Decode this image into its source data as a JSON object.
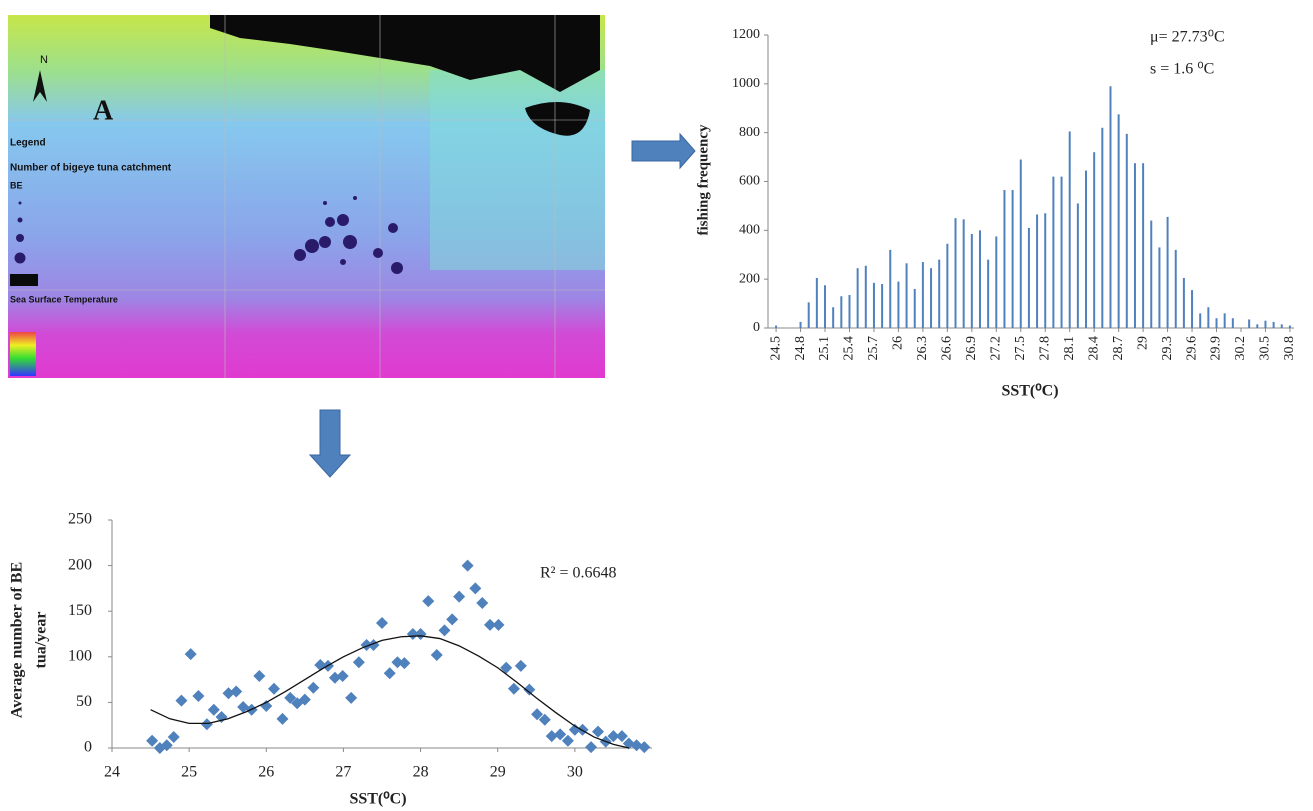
{
  "map": {
    "panel_label": "A",
    "north": "N",
    "legend_title": "Legend",
    "legend_subtitle": "Number of bigeye tuna catchment",
    "legend_layer": "BE",
    "sst_title": "Sea Surface Temperature"
  },
  "chart_data": [
    {
      "type": "bar",
      "xlabel": "SST(⁰C)",
      "ylabel": "fishing frequency",
      "annotations": [
        "μ= 27.73⁰C",
        "s = 1.6 ⁰C"
      ],
      "categories": [
        "24.5",
        null,
        null,
        "24.8",
        null,
        null,
        "25.1",
        null,
        null,
        "25.4",
        null,
        null,
        "25.7",
        null,
        null,
        "26",
        null,
        null,
        "26.3",
        null,
        null,
        "26.6",
        null,
        null,
        "26.9",
        null,
        null,
        "27.2",
        null,
        null,
        "27.5",
        null,
        null,
        "27.8",
        null,
        null,
        "28.1",
        null,
        null,
        "28.4",
        null,
        null,
        "28.7",
        null,
        null,
        "29",
        null,
        null,
        "29.3",
        null,
        null,
        "29.6",
        null,
        null,
        "29.9",
        null,
        null,
        "30.2",
        null,
        null,
        "30.5",
        null,
        null,
        "30.8"
      ],
      "values": [
        10,
        0,
        0,
        25,
        105,
        205,
        175,
        85,
        130,
        135,
        245,
        255,
        185,
        180,
        320,
        190,
        265,
        160,
        270,
        245,
        280,
        345,
        450,
        445,
        385,
        400,
        280,
        375,
        565,
        565,
        690,
        410,
        465,
        470,
        620,
        620,
        805,
        510,
        645,
        720,
        820,
        990,
        875,
        795,
        675,
        675,
        440,
        330,
        455,
        320,
        205,
        155,
        60,
        85,
        40,
        60,
        40,
        0,
        35,
        15,
        30,
        25,
        15,
        10
      ],
      "color": "#4f81bd",
      "ylim": [
        0,
        1200
      ],
      "yticks": [
        0,
        200,
        400,
        600,
        800,
        1000,
        1200
      ]
    },
    {
      "type": "scatter",
      "xlabel": "SST(⁰C)",
      "ylabel": [
        "Average  number of BE",
        "tua/year"
      ],
      "annotations": [
        "R² = 0.6648"
      ],
      "x": [
        24.52,
        24.62,
        24.71,
        24.8,
        24.9,
        25.02,
        25.12,
        25.23,
        25.32,
        25.42,
        25.51,
        25.61,
        25.7,
        25.81,
        25.91,
        26.0,
        26.1,
        26.21,
        26.31,
        26.4,
        26.5,
        26.61,
        26.7,
        26.8,
        26.89,
        26.99,
        27.1,
        27.2,
        27.3,
        27.39,
        27.5,
        27.6,
        27.7,
        27.79,
        27.9,
        28.0,
        28.1,
        28.21,
        28.31,
        28.41,
        28.5,
        28.61,
        28.71,
        28.8,
        28.9,
        29.01,
        29.11,
        29.21,
        29.3,
        29.41,
        29.51,
        29.61,
        29.7,
        29.81,
        29.91,
        30.0,
        30.1,
        30.21,
        30.3,
        30.4,
        30.5,
        30.61,
        30.7,
        30.8,
        30.9
      ],
      "values": [
        8,
        0,
        3,
        12,
        52,
        103,
        57,
        26,
        42,
        34,
        60,
        62,
        45,
        42,
        79,
        46,
        65,
        32,
        55,
        49,
        53,
        66,
        91,
        90,
        77,
        79,
        55,
        94,
        113,
        113,
        137,
        82,
        94,
        93,
        125,
        125,
        161,
        102,
        129,
        141,
        166,
        200,
        175,
        159,
        135,
        135,
        88,
        65,
        90,
        64,
        37,
        31,
        13,
        15,
        8,
        20,
        20,
        1,
        18,
        7,
        13,
        13,
        5,
        3,
        1
      ],
      "trendline": {
        "x": [
          24.5,
          24.75,
          25,
          25.25,
          25.5,
          25.75,
          26,
          26.25,
          26.5,
          26.75,
          27,
          27.25,
          27.5,
          27.75,
          28,
          28.25,
          28.5,
          28.75,
          29,
          29.25,
          29.5,
          29.75,
          30,
          30.25,
          30.5,
          30.7
        ],
        "values": [
          42,
          32,
          27,
          27,
          32,
          40,
          50,
          62,
          75,
          88,
          100,
          110,
          118,
          122,
          123,
          120,
          112,
          101,
          88,
          72,
          55,
          39,
          24,
          12,
          4,
          0
        ]
      },
      "color": "#4f81bd",
      "xlim": [
        24,
        31
      ],
      "xticks": [
        24,
        25,
        26,
        27,
        28,
        29,
        30
      ],
      "ylim": [
        0,
        250
      ],
      "yticks": [
        0,
        50,
        100,
        150,
        200,
        250
      ]
    }
  ]
}
